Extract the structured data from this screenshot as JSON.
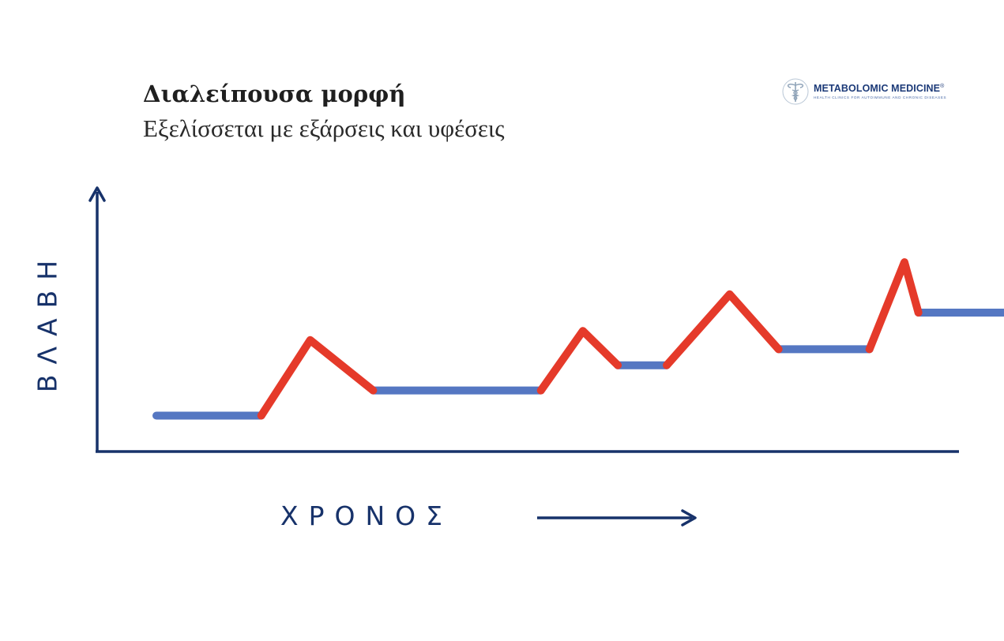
{
  "header": {
    "title": "Διαλείπουσα μορφή",
    "subtitle": "Εξελίσσεται με εξάρσεις και υφέσεις"
  },
  "logo": {
    "name": "METABOLOMIC MEDICINE",
    "registered_mark": "®",
    "tagline": "HEALTH CLINICS FOR AUTOIMMUNE AND CHRONIC DISEASES",
    "icon": "caduceus-icon"
  },
  "axes": {
    "ylabel": "ΒΛΑΒΗ",
    "xlabel": "ΧΡΟΝΟΣ"
  },
  "colors": {
    "axis": "#17326a",
    "remission": "#5577c2",
    "relapse": "#e53a2a"
  },
  "diagram": {
    "segments": [
      {
        "phase": "remission",
        "points": [
          [
            0,
            15
          ],
          [
            1.5,
            15
          ]
        ]
      },
      {
        "phase": "relapse",
        "points": [
          [
            1.5,
            15
          ],
          [
            2.2,
            48
          ],
          [
            3.1,
            26
          ]
        ]
      },
      {
        "phase": "remission",
        "points": [
          [
            3.1,
            26
          ],
          [
            5.5,
            26
          ]
        ]
      },
      {
        "phase": "relapse",
        "points": [
          [
            5.5,
            26
          ],
          [
            6.1,
            52
          ],
          [
            6.6,
            37
          ]
        ]
      },
      {
        "phase": "remission",
        "points": [
          [
            6.6,
            37
          ],
          [
            7.3,
            37
          ]
        ]
      },
      {
        "phase": "relapse",
        "points": [
          [
            7.3,
            37
          ],
          [
            8.2,
            68
          ],
          [
            8.9,
            44
          ]
        ]
      },
      {
        "phase": "remission",
        "points": [
          [
            8.9,
            44
          ],
          [
            10.2,
            44
          ]
        ]
      },
      {
        "phase": "relapse",
        "points": [
          [
            10.2,
            44
          ],
          [
            10.7,
            82
          ],
          [
            10.9,
            60
          ]
        ]
      },
      {
        "phase": "remission",
        "points": [
          [
            10.9,
            60
          ],
          [
            12.3,
            60
          ]
        ]
      }
    ]
  }
}
